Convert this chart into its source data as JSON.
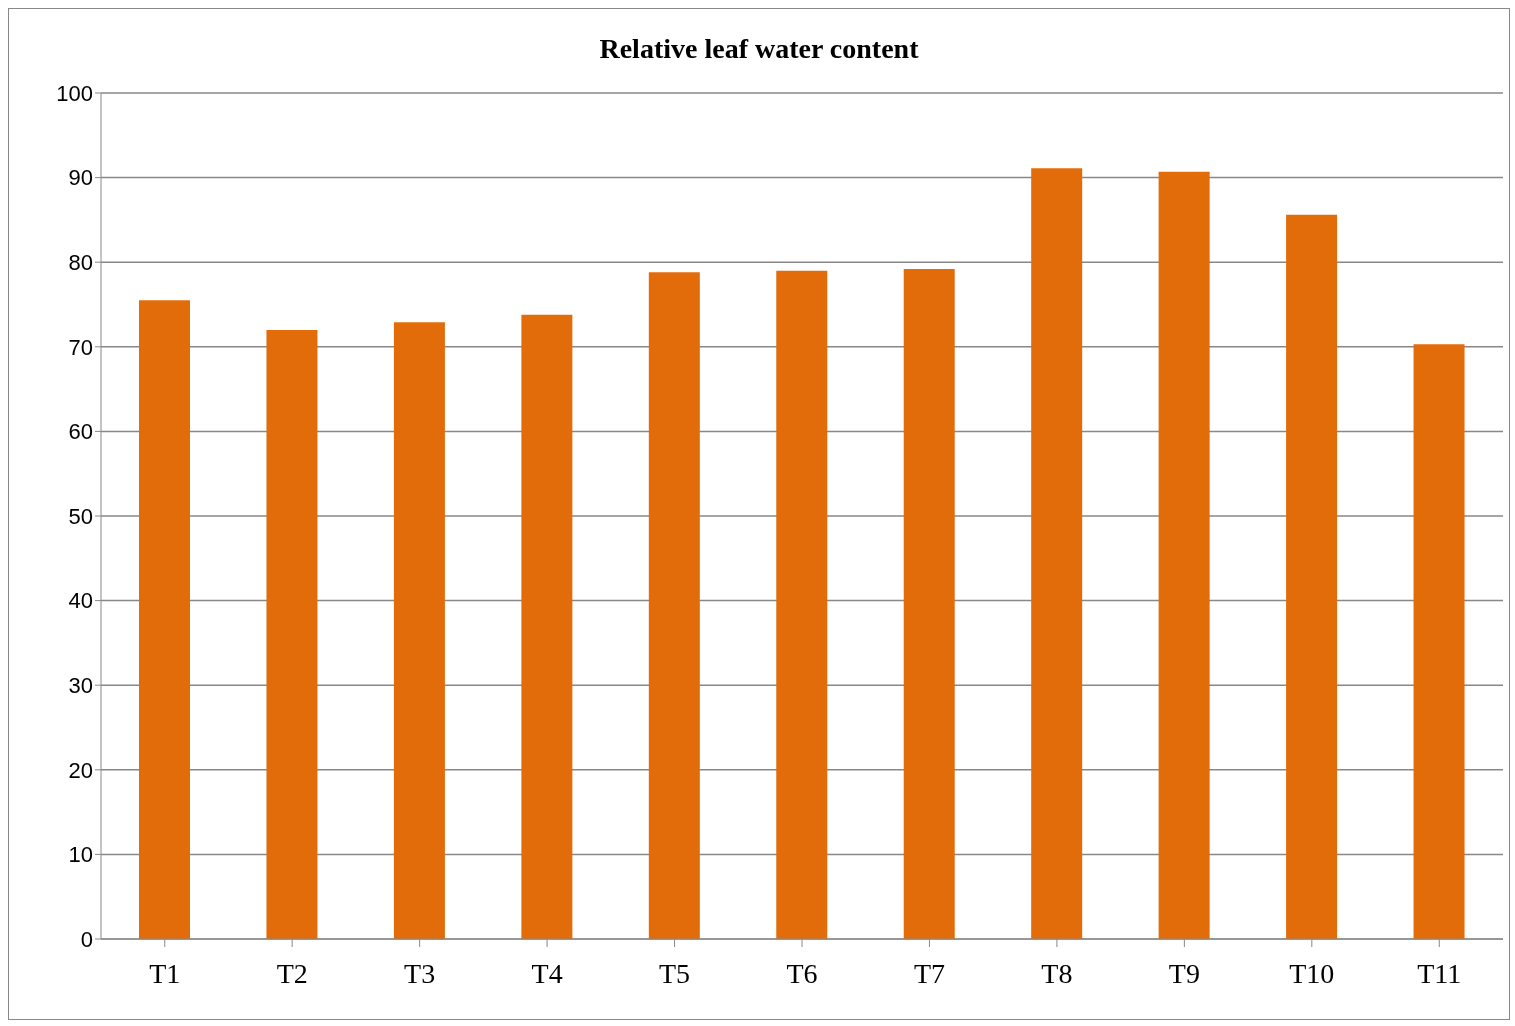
{
  "chart_data": {
    "type": "bar",
    "title": "Relative leaf water content",
    "categories": [
      "T1",
      "T2",
      "T3",
      "T4",
      "T5",
      "T6",
      "T7",
      "T8",
      "T9",
      "T10",
      "T11"
    ],
    "values": [
      75.5,
      72.0,
      72.9,
      73.8,
      78.8,
      79.0,
      79.2,
      91.1,
      90.7,
      85.6,
      70.3
    ],
    "color": "#e36c0a",
    "ylim": [
      0,
      100
    ],
    "yticks": [
      0,
      10,
      20,
      30,
      40,
      50,
      60,
      70,
      80,
      90,
      100
    ],
    "grid": "y"
  }
}
